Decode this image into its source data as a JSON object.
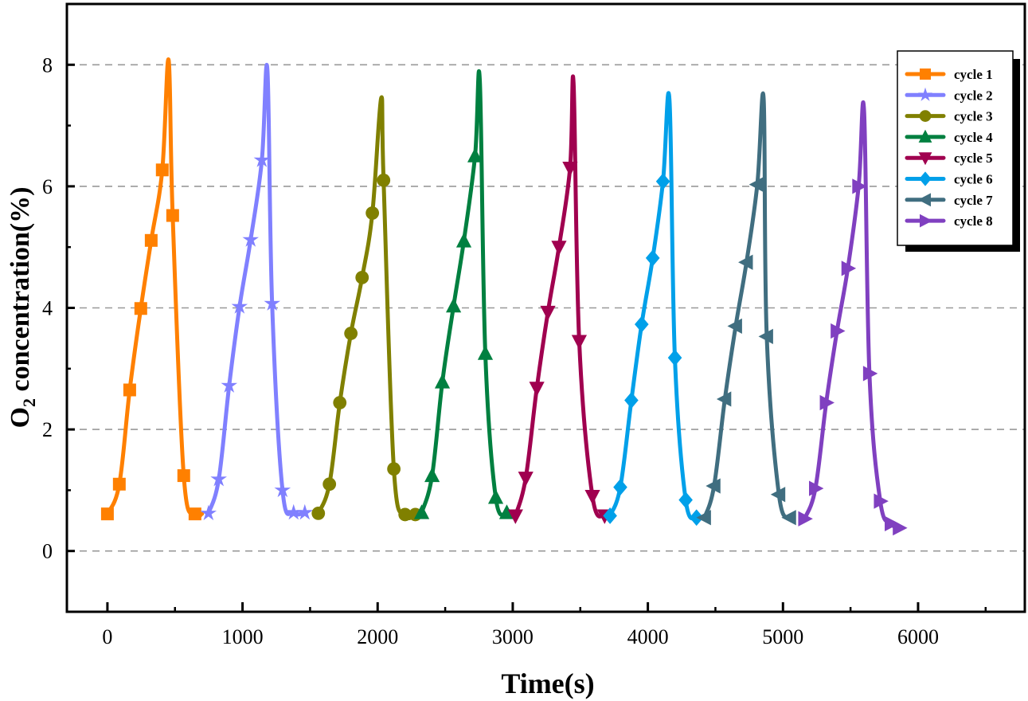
{
  "chart_data": {
    "type": "line",
    "title": "",
    "xlabel": "Time(s)",
    "ylabel_main": "O",
    "ylabel_sub": "2",
    "ylabel_rest": " concentration(%)",
    "xlim": [
      -300,
      6790
    ],
    "ylim": [
      -1,
      9
    ],
    "xticks": [
      0,
      1000,
      2000,
      3000,
      4000,
      5000,
      6000
    ],
    "yticks": [
      0,
      2,
      4,
      6,
      8
    ],
    "grid": "horizontal dashed",
    "legend_position": "top-right",
    "series": [
      {
        "name": "cycle 1",
        "color": "#FF8000",
        "marker": "square",
        "points": [
          [
            0,
            0.61
          ],
          [
            88,
            1.1
          ],
          [
            165,
            2.65
          ],
          [
            247,
            3.99
          ],
          [
            324,
            5.11
          ],
          [
            406,
            6.27
          ],
          [
            453,
            8.08
          ],
          [
            483,
            5.52
          ],
          [
            565,
            1.24
          ],
          [
            648,
            0.61
          ],
          [
            700,
            0.61
          ]
        ]
      },
      {
        "name": "cycle 2",
        "color": "#8080FF",
        "marker": "star",
        "points": [
          [
            748,
            0.62
          ],
          [
            824,
            1.18
          ],
          [
            901,
            2.72
          ],
          [
            978,
            4.02
          ],
          [
            1060,
            5.12
          ],
          [
            1143,
            6.43
          ],
          [
            1184,
            7.92
          ],
          [
            1219,
            4.07
          ],
          [
            1296,
            1.0
          ],
          [
            1378,
            0.63
          ],
          [
            1461,
            0.63
          ]
        ]
      },
      {
        "name": "cycle 3",
        "color": "#808000",
        "marker": "circle",
        "points": [
          [
            1561,
            0.62
          ],
          [
            1643,
            1.1
          ],
          [
            1720,
            2.44
          ],
          [
            1802,
            3.58
          ],
          [
            1885,
            4.5
          ],
          [
            1961,
            5.56
          ],
          [
            2026,
            7.45
          ],
          [
            2044,
            6.1
          ],
          [
            2120,
            1.35
          ],
          [
            2203,
            0.6
          ],
          [
            2279,
            0.6
          ]
        ]
      },
      {
        "name": "cycle 4",
        "color": "#008040",
        "marker": "triangle-up",
        "points": [
          [
            2326,
            0.63
          ],
          [
            2403,
            1.24
          ],
          [
            2479,
            2.78
          ],
          [
            2562,
            4.03
          ],
          [
            2638,
            5.1
          ],
          [
            2721,
            6.5
          ],
          [
            2756,
            7.75
          ],
          [
            2797,
            3.25
          ],
          [
            2874,
            0.88
          ],
          [
            2956,
            0.63
          ]
        ]
      },
      {
        "name": "cycle 5",
        "color": "#A0004F",
        "marker": "triangle-down",
        "points": [
          [
            3020,
            0.58
          ],
          [
            3096,
            1.2
          ],
          [
            3178,
            2.68
          ],
          [
            3260,
            3.93
          ],
          [
            3342,
            5.0
          ],
          [
            3424,
            6.3
          ],
          [
            3450,
            7.7
          ],
          [
            3492,
            3.45
          ],
          [
            3590,
            0.9
          ],
          [
            3680,
            0.58
          ]
        ]
      },
      {
        "name": "cycle 6",
        "color": "#00A0E9",
        "marker": "diamond",
        "points": [
          [
            3720,
            0.58
          ],
          [
            3796,
            1.05
          ],
          [
            3878,
            2.48
          ],
          [
            3954,
            3.73
          ],
          [
            4036,
            4.82
          ],
          [
            4112,
            6.08
          ],
          [
            4160,
            7.42
          ],
          [
            4200,
            3.18
          ],
          [
            4280,
            0.84
          ],
          [
            4360,
            0.55
          ]
        ]
      },
      {
        "name": "cycle 7",
        "color": "#406E80",
        "marker": "triangle-left",
        "points": [
          [
            4420,
            0.55
          ],
          [
            4490,
            1.07
          ],
          [
            4570,
            2.5
          ],
          [
            4650,
            3.7
          ],
          [
            4730,
            4.75
          ],
          [
            4810,
            6.03
          ],
          [
            4857,
            7.44
          ],
          [
            4880,
            3.53
          ],
          [
            4970,
            0.93
          ],
          [
            5050,
            0.55
          ]
        ]
      },
      {
        "name": "cycle 8",
        "color": "#8040C0",
        "marker": "triangle-right",
        "points": [
          [
            5160,
            0.53
          ],
          [
            5240,
            1.03
          ],
          [
            5320,
            2.44
          ],
          [
            5400,
            3.62
          ],
          [
            5480,
            4.65
          ],
          [
            5560,
            6.0
          ],
          [
            5600,
            7.25
          ],
          [
            5640,
            2.92
          ],
          [
            5720,
            0.82
          ],
          [
            5800,
            0.45
          ],
          [
            5860,
            0.38
          ]
        ]
      }
    ],
    "peak_indices_note": "points whose y is the series maximum are drawn without a marker"
  }
}
